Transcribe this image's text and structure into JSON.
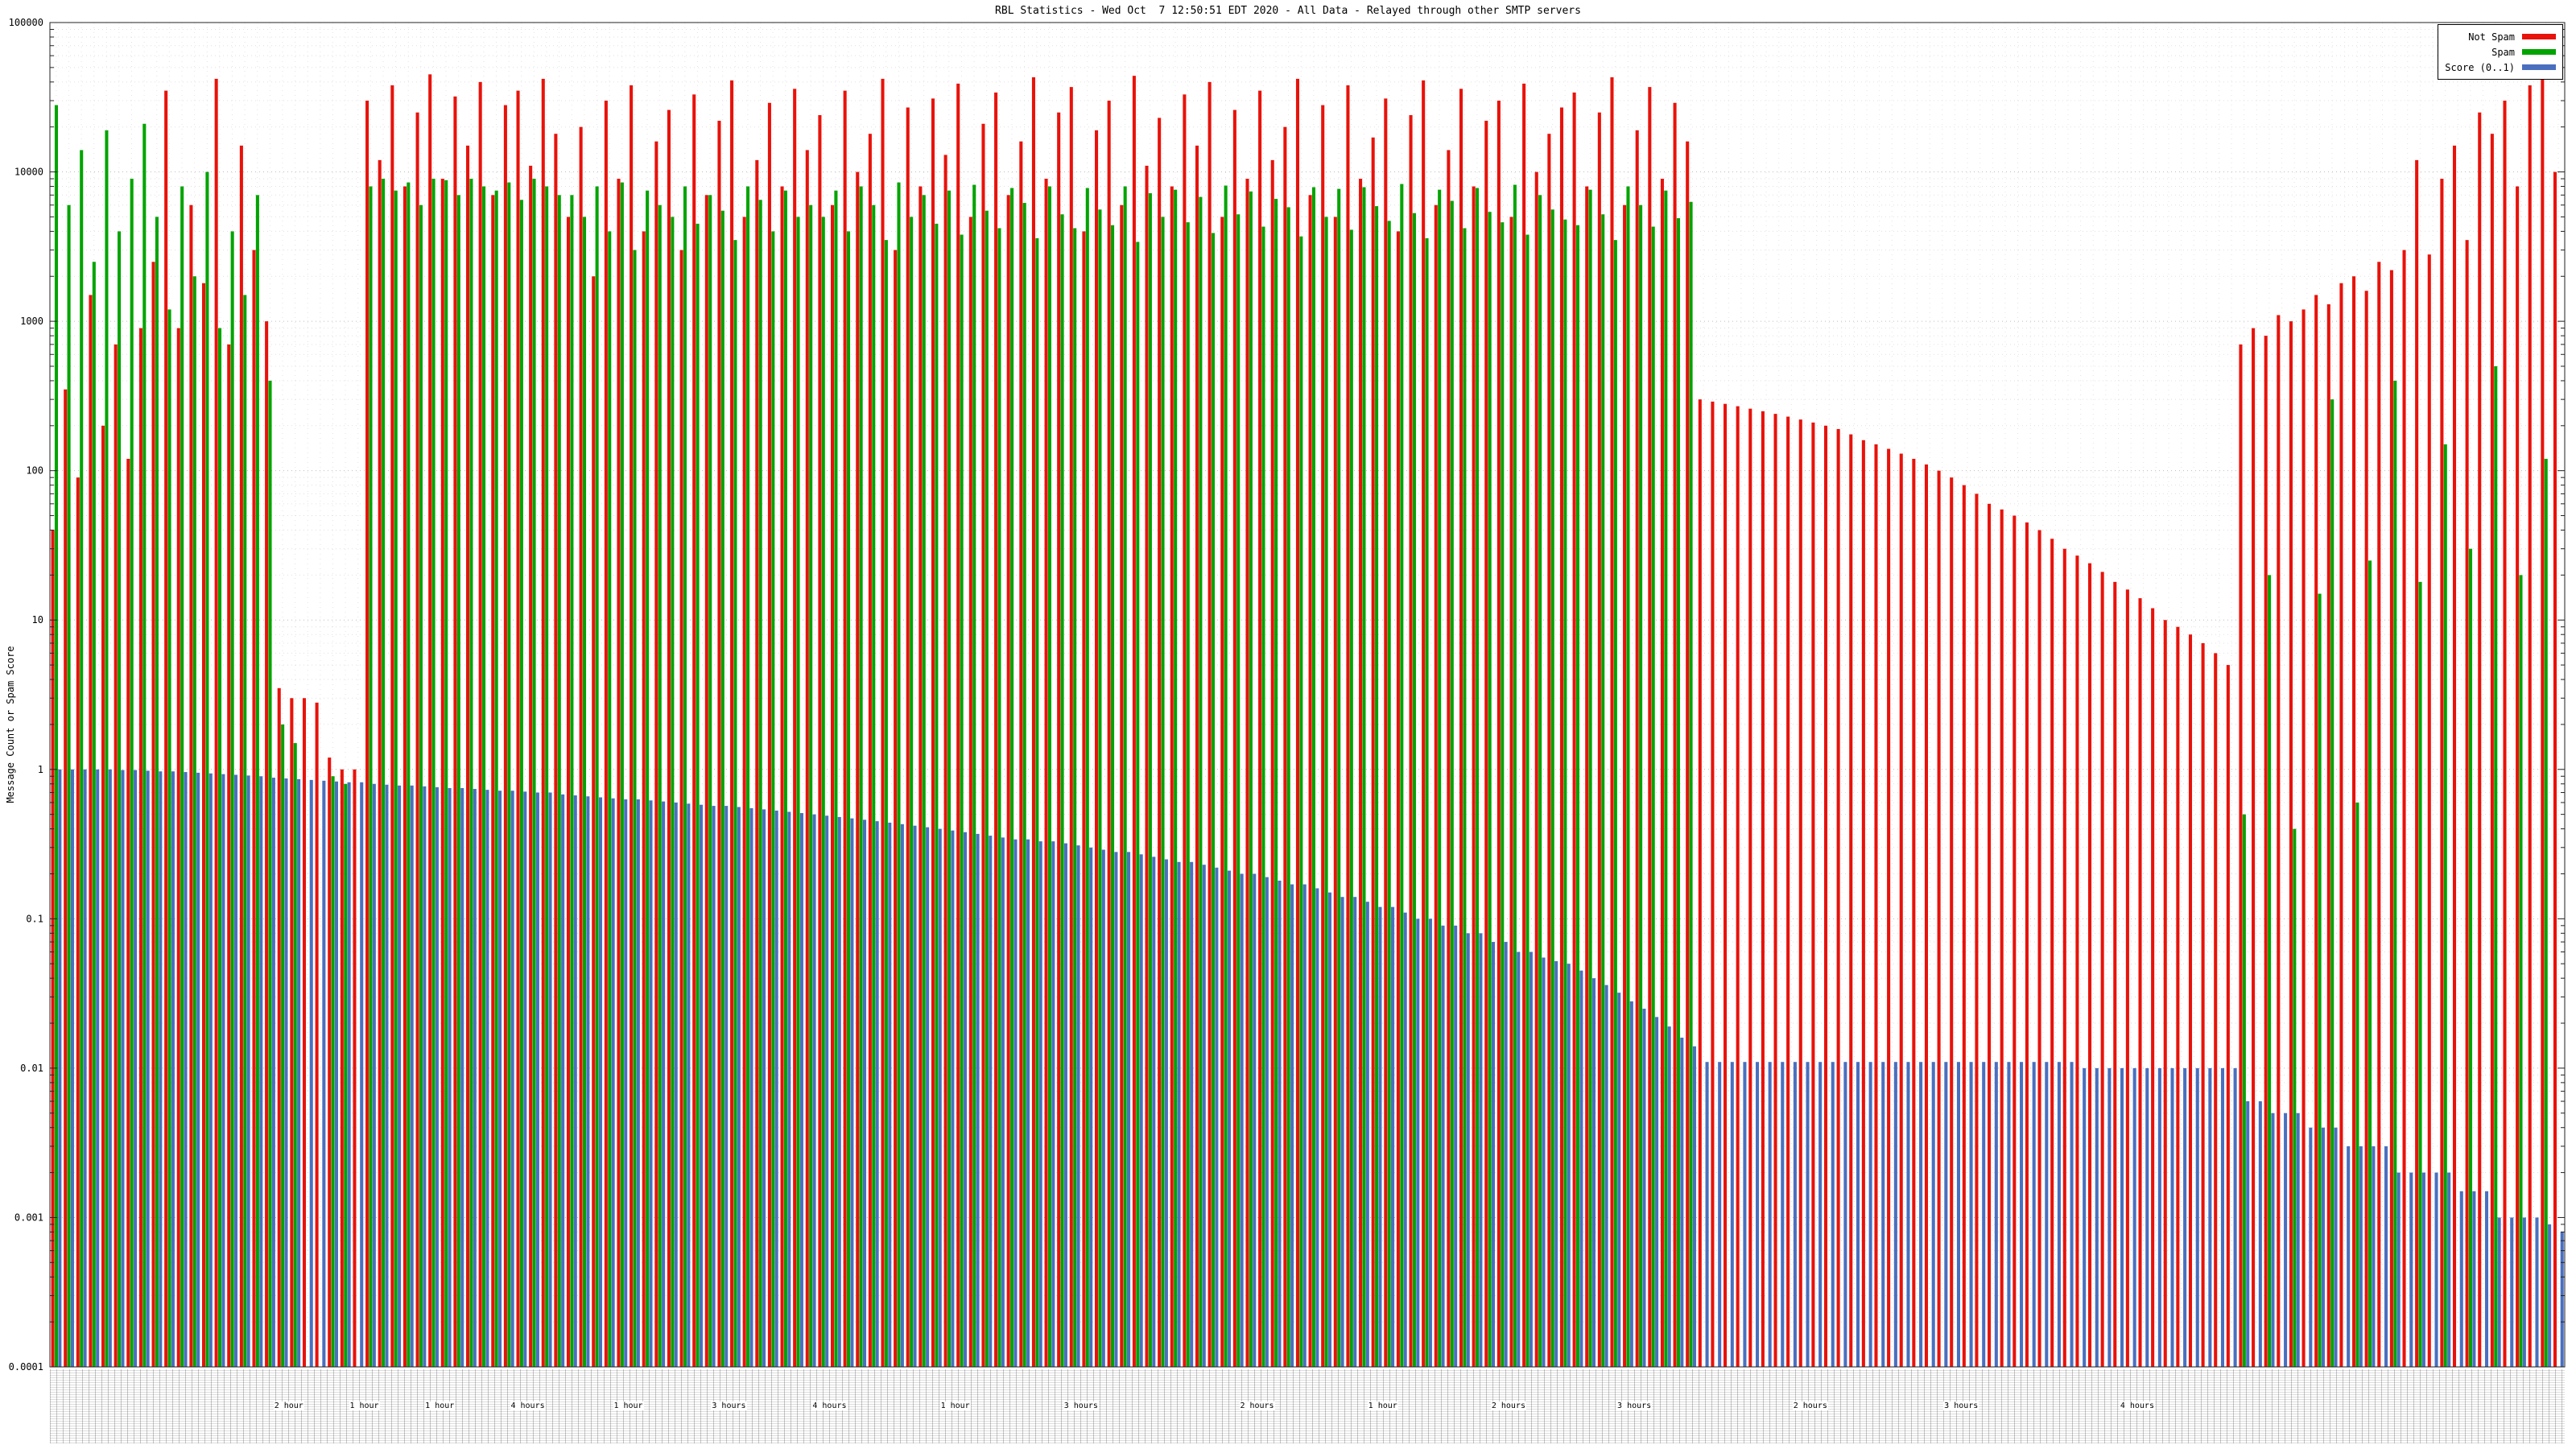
{
  "chart_data": {
    "type": "bar",
    "title": "RBL Statistics - Wed Oct  7 12:50:51 EDT 2020 - All Data - Relayed through other SMTP servers",
    "ylabel": "Message Count or Spam Score",
    "xlabel": "",
    "log_y": true,
    "ylim": [
      0.0001,
      100000
    ],
    "grid": "dotted",
    "legend_position": "top-right",
    "ytick_labels": [
      "100000",
      "10000",
      "1000",
      "100",
      "10",
      "1",
      "0.1",
      "0.01",
      "0.001",
      "0.0001"
    ],
    "series": [
      {
        "id": "notspam",
        "name": "Not Spam",
        "color": "#e8120a",
        "values": [
          40,
          350,
          90,
          1500,
          200,
          700,
          120,
          900,
          2500,
          35000,
          900,
          6000,
          1800,
          42000,
          700,
          15000,
          3000,
          1000,
          3.5,
          3,
          3,
          2.8,
          1.2,
          1,
          1,
          30000,
          12000,
          38000,
          8000,
          25000,
          45000,
          9000,
          32000,
          15000,
          40000,
          7000,
          28000,
          35000,
          11000,
          42000,
          18000,
          5000,
          20000,
          2000,
          30000,
          9000,
          38000,
          4000,
          16000,
          26000,
          3000,
          33000,
          7000,
          22000,
          41000,
          5000,
          12000,
          29000,
          8000,
          36000,
          14000,
          24000,
          6000,
          35000,
          10000,
          18000,
          42000,
          3000,
          27000,
          8000,
          31000,
          13000,
          39000,
          5000,
          21000,
          34000,
          7000,
          16000,
          43000,
          9000,
          25000,
          37000,
          4000,
          19000,
          30000,
          6000,
          44000,
          11000,
          23000,
          8000,
          33000,
          15000,
          40000,
          5000,
          26000,
          9000,
          35000,
          12000,
          20000,
          42000,
          7000,
          28000,
          5000,
          38000,
          9000,
          17000,
          31000,
          4000,
          24000,
          41000,
          6000,
          14000,
          36000,
          8000,
          22000,
          30000,
          5000,
          39000,
          10000,
          18000,
          27000,
          34000,
          8000,
          25000,
          43000,
          6000,
          19000,
          37000,
          9000,
          29000,
          16000,
          300,
          290,
          280,
          270,
          260,
          250,
          240,
          230,
          220,
          210,
          200,
          190,
          175,
          160,
          150,
          140,
          130,
          120,
          110,
          100,
          90,
          80,
          70,
          60,
          55,
          50,
          45,
          40,
          35,
          30,
          27,
          24,
          21,
          18,
          16,
          14,
          12,
          10,
          9,
          8,
          7,
          6,
          5,
          700,
          900,
          800,
          1100,
          1000,
          1200,
          1500,
          1300,
          1800,
          2000,
          1600,
          2500,
          2200,
          3000,
          12000,
          2800,
          9000,
          15000,
          3500,
          25000,
          18000,
          30000,
          8000,
          38000,
          42000,
          10000
        ]
      },
      {
        "id": "spam",
        "name": "Spam",
        "color": "#00a400",
        "values": [
          28000,
          6000,
          14000,
          2500,
          19000,
          4000,
          9000,
          21000,
          5000,
          1200,
          8000,
          2000,
          10000,
          900,
          4000,
          1500,
          7000,
          400,
          2,
          1.5,
          0,
          0,
          0.9,
          0.8,
          0,
          8000,
          9000,
          7500,
          8500,
          6000,
          9000,
          8800,
          7000,
          9000,
          8000,
          7500,
          8500,
          6500,
          9000,
          8000,
          7000,
          7000,
          5000,
          8000,
          4000,
          8500,
          3000,
          7500,
          6000,
          5000,
          8000,
          4500,
          7000,
          5500,
          3500,
          8000,
          6500,
          4000,
          7500,
          5000,
          6000,
          5000,
          7500,
          4000,
          8000,
          6000,
          3500,
          8500,
          5000,
          7000,
          4500,
          7500,
          3800,
          8200,
          5500,
          4200,
          7800,
          6200,
          3600,
          8000,
          5200,
          4200,
          7800,
          5600,
          4400,
          8000,
          3400,
          7200,
          5000,
          7600,
          4600,
          6800,
          3900,
          8100,
          5200,
          7400,
          4300,
          6600,
          5800,
          3700,
          7900,
          5000,
          7700,
          4100,
          7900,
          5900,
          4700,
          8300,
          5300,
          3600,
          7600,
          6400,
          4200,
          7800,
          5400,
          4600,
          8200,
          3800,
          7000,
          5600,
          4800,
          4400,
          7600,
          5200,
          3500,
          8000,
          6000,
          4300,
          7500,
          4900,
          6300,
          0,
          0,
          0,
          0,
          0,
          0,
          0,
          0,
          0,
          0,
          0,
          0,
          0,
          0,
          0,
          0,
          0,
          0,
          0,
          0,
          0,
          0,
          0,
          0,
          0,
          0,
          0,
          0,
          0,
          0,
          0,
          0,
          0,
          0,
          0,
          0,
          0,
          0,
          0,
          0,
          0,
          0,
          0,
          0.5,
          0,
          20,
          0,
          0.4,
          0,
          15,
          300,
          0,
          0.6,
          25,
          0,
          400,
          0,
          18,
          0,
          150,
          0,
          30,
          0,
          500,
          0,
          20,
          0,
          120,
          0
        ]
      },
      {
        "id": "score",
        "name": "Score (0..1)",
        "color": "#4a6fbf",
        "values": [
          1.0,
          1.0,
          1.0,
          1.0,
          1.0,
          0.99,
          0.99,
          0.98,
          0.97,
          0.97,
          0.96,
          0.95,
          0.94,
          0.93,
          0.92,
          0.91,
          0.9,
          0.88,
          0.87,
          0.86,
          0.85,
          0.84,
          0.83,
          0.82,
          0.82,
          0.8,
          0.79,
          0.78,
          0.78,
          0.77,
          0.76,
          0.75,
          0.75,
          0.74,
          0.73,
          0.72,
          0.72,
          0.71,
          0.7,
          0.7,
          0.68,
          0.67,
          0.66,
          0.65,
          0.64,
          0.63,
          0.63,
          0.62,
          0.61,
          0.6,
          0.59,
          0.58,
          0.57,
          0.57,
          0.56,
          0.55,
          0.54,
          0.53,
          0.52,
          0.51,
          0.5,
          0.49,
          0.48,
          0.47,
          0.46,
          0.45,
          0.44,
          0.43,
          0.42,
          0.41,
          0.4,
          0.39,
          0.38,
          0.37,
          0.36,
          0.35,
          0.34,
          0.34,
          0.33,
          0.33,
          0.32,
          0.31,
          0.3,
          0.29,
          0.28,
          0.28,
          0.27,
          0.26,
          0.25,
          0.24,
          0.24,
          0.23,
          0.22,
          0.21,
          0.2,
          0.2,
          0.19,
          0.18,
          0.17,
          0.17,
          0.16,
          0.15,
          0.14,
          0.14,
          0.13,
          0.12,
          0.12,
          0.11,
          0.1,
          0.1,
          0.09,
          0.09,
          0.08,
          0.08,
          0.07,
          0.07,
          0.06,
          0.06,
          0.055,
          0.052,
          0.05,
          0.045,
          0.04,
          0.036,
          0.032,
          0.028,
          0.025,
          0.022,
          0.019,
          0.016,
          0.014,
          0.011,
          0.011,
          0.011,
          0.011,
          0.011,
          0.011,
          0.011,
          0.011,
          0.011,
          0.011,
          0.011,
          0.011,
          0.011,
          0.011,
          0.011,
          0.011,
          0.011,
          0.011,
          0.011,
          0.011,
          0.011,
          0.011,
          0.011,
          0.011,
          0.011,
          0.011,
          0.011,
          0.011,
          0.011,
          0.011,
          0.01,
          0.01,
          0.01,
          0.01,
          0.01,
          0.01,
          0.01,
          0.01,
          0.01,
          0.01,
          0.01,
          0.01,
          0.01,
          0.006,
          0.006,
          0.005,
          0.005,
          0.005,
          0.004,
          0.004,
          0.004,
          0.003,
          0.003,
          0.003,
          0.003,
          0.002,
          0.002,
          0.002,
          0.002,
          0.002,
          0.0015,
          0.0015,
          0.0015,
          0.001,
          0.001,
          0.001,
          0.001,
          0.0009,
          0.0008
        ]
      }
    ]
  },
  "xaxis": {
    "fragments": [
      {
        "text": "2 hour",
        "pos": 9.5
      },
      {
        "text": "1 hour",
        "pos": 12.5
      },
      {
        "text": "1 hour",
        "pos": 15.5
      },
      {
        "text": "4 hours",
        "pos": 19
      },
      {
        "text": "1 hour",
        "pos": 23
      },
      {
        "text": "3 hours",
        "pos": 27
      },
      {
        "text": "4 hours",
        "pos": 31
      },
      {
        "text": "1 hour",
        "pos": 36
      },
      {
        "text": "3 hours",
        "pos": 41
      },
      {
        "text": "2 hours",
        "pos": 48
      },
      {
        "text": "1 hour",
        "pos": 53
      },
      {
        "text": "2 hours",
        "pos": 58
      },
      {
        "text": "3 hours",
        "pos": 63
      },
      {
        "text": "2 hours",
        "pos": 70
      },
      {
        "text": "3 hours",
        "pos": 76
      },
      {
        "text": "4 hours",
        "pos": 83
      }
    ]
  }
}
